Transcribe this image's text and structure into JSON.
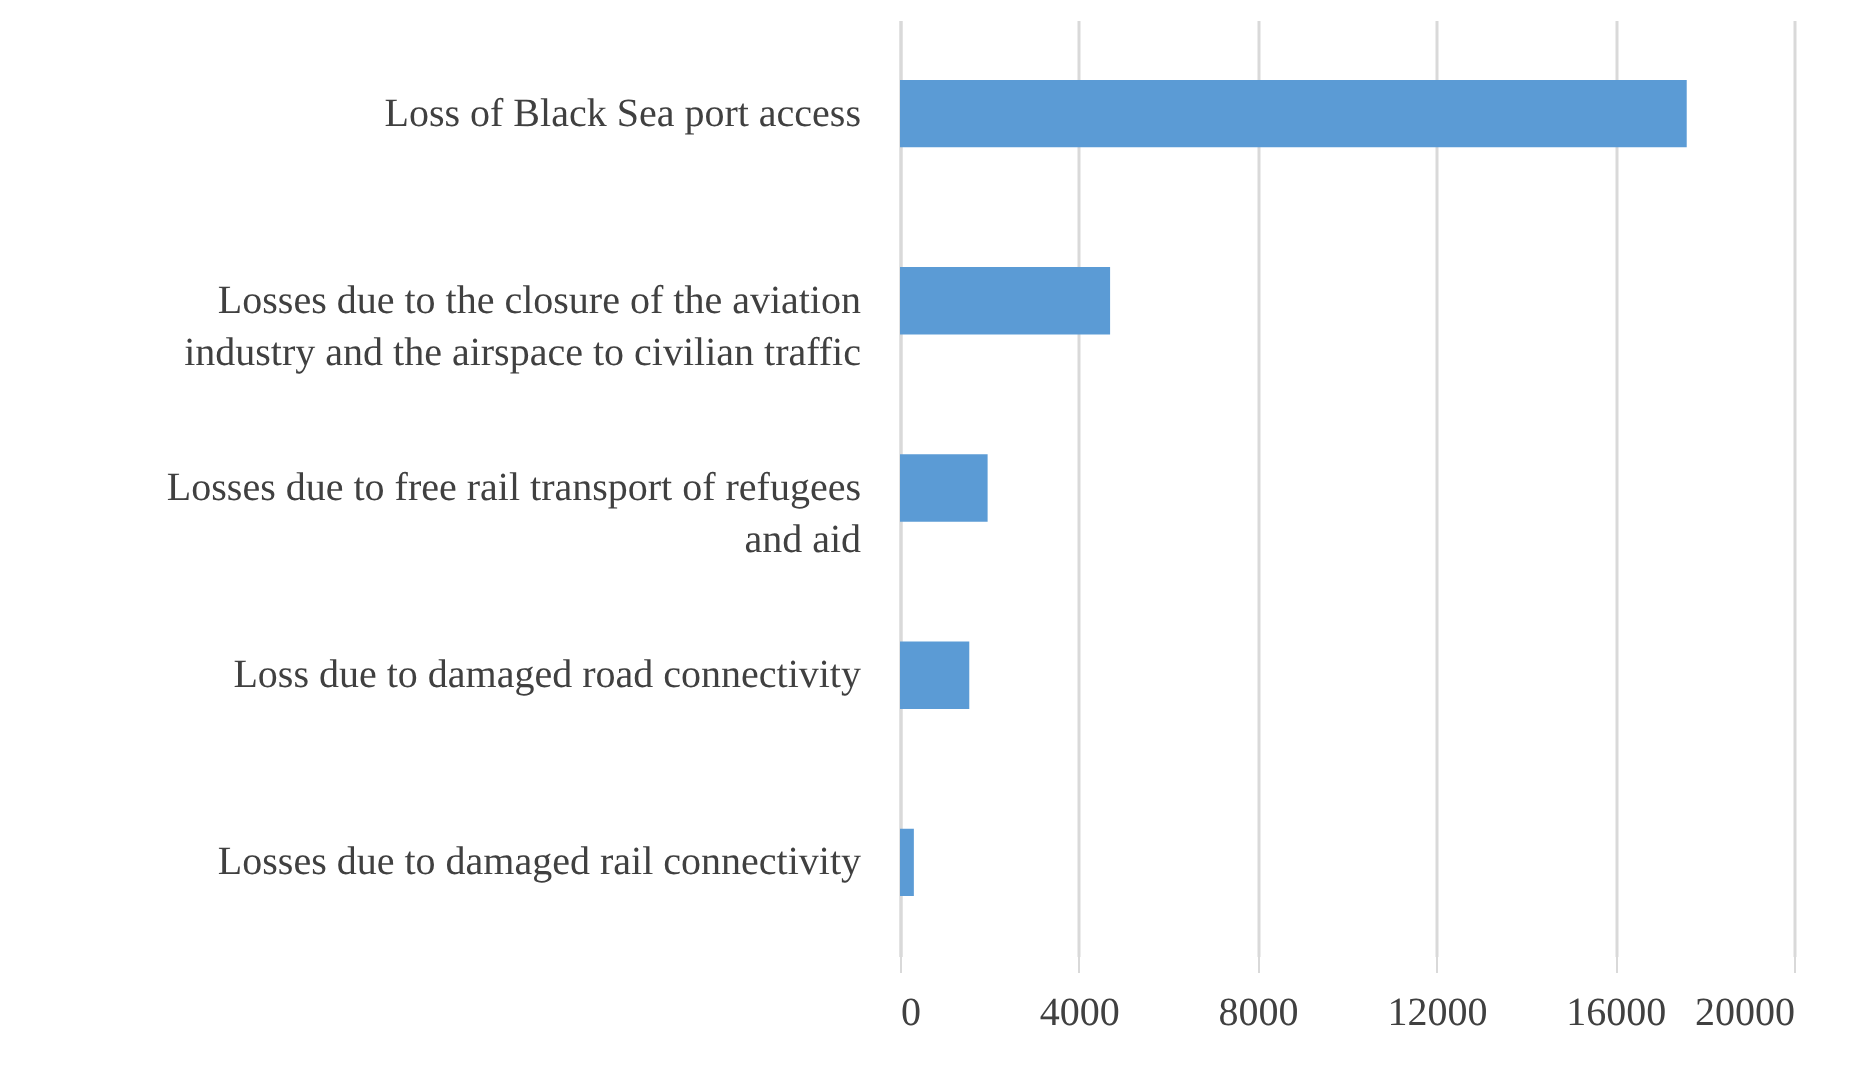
{
  "chart_data": {
    "type": "bar",
    "orientation": "horizontal",
    "categories": [
      "Loss of Black Sea port access",
      "Losses due to the closure of the aviation industry and the airspace to civilian traffic",
      "Losses due to free rail transport of refugees and aid",
      "Loss due to damaged road connectivity",
      "Losses due to damaged rail connectivity"
    ],
    "values": [
      17600,
      4700,
      1960,
      1550,
      310
    ],
    "color": "#5b9bd5",
    "xlim": [
      0,
      20000
    ],
    "xticks": [
      0,
      4000,
      8000,
      12000,
      16000,
      20000
    ],
    "grid": "x"
  }
}
